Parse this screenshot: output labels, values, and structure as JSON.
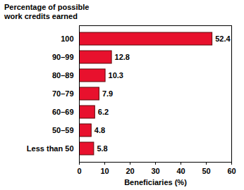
{
  "chart_data": {
    "type": "bar",
    "orientation": "horizontal",
    "ylabel": "Percentage of possible work credits earned",
    "xlabel": "Beneficiaries (%)",
    "categories": [
      "100",
      "90–99",
      "80–89",
      "70–79",
      "60–69",
      "50–59",
      "Less than 50"
    ],
    "values": [
      52.4,
      12.8,
      10.3,
      7.9,
      6.2,
      4.8,
      5.8
    ],
    "color": "#e8112d",
    "xlim": [
      0,
      60
    ],
    "xticks": [
      0,
      10,
      20,
      30,
      40,
      50,
      60
    ],
    "data_labels": true
  }
}
